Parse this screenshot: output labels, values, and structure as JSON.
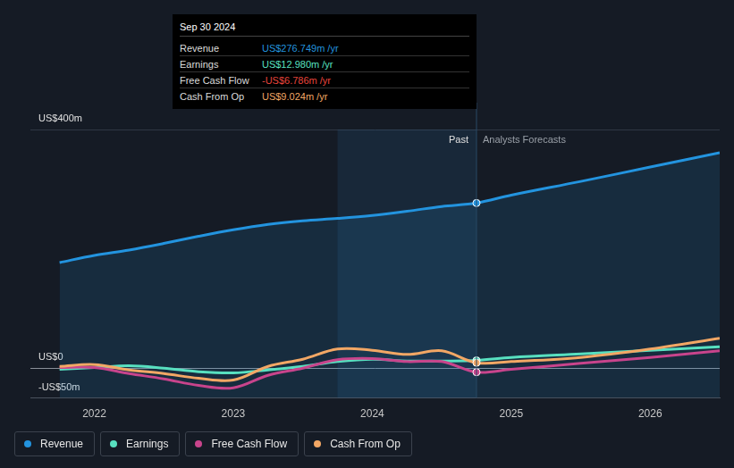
{
  "chart_data": {
    "type": "line",
    "x": [
      2021.75,
      2022.0,
      2022.25,
      2022.5,
      2022.75,
      2023.0,
      2023.25,
      2023.5,
      2023.75,
      2024.0,
      2024.25,
      2024.5,
      2024.75,
      2025.0,
      2025.5,
      2026.0,
      2026.5
    ],
    "xlim": [
      2021.54,
      2026.5
    ],
    "xticks": [
      2022,
      2023,
      2024,
      2025,
      2026
    ],
    "ylim": [
      -50,
      400
    ],
    "yticks": [
      {
        "value": -50,
        "label": "-US$50m"
      },
      {
        "value": 0,
        "label": "US$0"
      },
      {
        "value": 400,
        "label": "US$400m"
      }
    ],
    "grid": true,
    "legend": "bottom",
    "series": [
      {
        "name": "Revenue",
        "color": "#2394df",
        "values": [
          177,
          189,
          198,
          209,
          221,
          232,
          241,
          247,
          251,
          256,
          263,
          271,
          276.749,
          290,
          313,
          337,
          361
        ]
      },
      {
        "name": "Earnings",
        "color": "#58e0c0",
        "values": [
          -2,
          1,
          4,
          0,
          -6,
          -8,
          -3,
          3,
          11,
          15,
          12,
          12,
          12.98,
          18,
          24,
          30,
          36
        ]
      },
      {
        "name": "Free Cash Flow",
        "color": "#c8448c",
        "values": [
          1,
          1,
          -9,
          -18,
          -29,
          -33,
          -12,
          0,
          14,
          16,
          11,
          11,
          -6.786,
          -2,
          8,
          18,
          29
        ]
      },
      {
        "name": "Cash From Op",
        "color": "#f2a765",
        "values": [
          3,
          6,
          -3,
          -9,
          -17,
          -20,
          3,
          15,
          32,
          30,
          23,
          29,
          9.024,
          11,
          18,
          32,
          50
        ]
      }
    ],
    "tooltip": {
      "x": 2024.75,
      "title": "Sep 30 2024",
      "rows": [
        {
          "label": "Revenue",
          "text": "US$276.749m /yr"
        },
        {
          "label": "Earnings",
          "text": "US$12.980m /yr"
        },
        {
          "label": "Free Cash Flow",
          "text": "-US$6.786m /yr"
        },
        {
          "label": "Cash From Op",
          "text": "US$9.024m /yr"
        }
      ]
    },
    "annotations": [
      {
        "text": "Past",
        "x": 2024.75,
        "align": "right"
      },
      {
        "text": "Analysts Forecasts",
        "x": 2024.75,
        "align": "left"
      }
    ],
    "highlight": {
      "xlim": [
        2023.75,
        2024.75
      ]
    }
  }
}
